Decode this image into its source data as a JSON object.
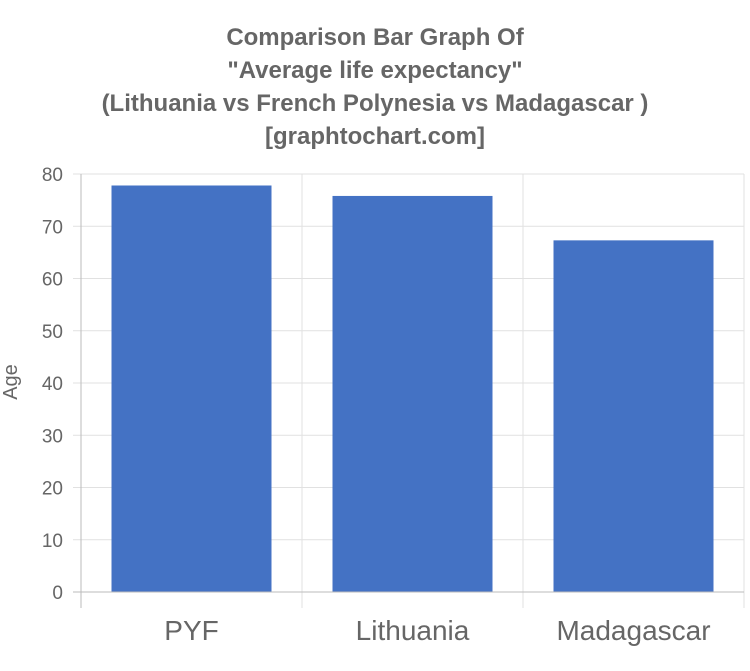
{
  "chart_data": {
    "type": "bar",
    "title": [
      "Comparison Bar Graph Of",
      "\"Average life expectancy\"",
      "(Lithuania vs French Polynesia vs Madagascar )",
      "[graphtochart.com]"
    ],
    "categories": [
      "PYF",
      "Lithuania",
      "Madagascar"
    ],
    "values": [
      77.8,
      75.8,
      67.3
    ],
    "xlabel": "",
    "ylabel": "Age",
    "ylim": [
      0,
      80
    ],
    "yticks": [
      0,
      10,
      20,
      30,
      40,
      50,
      60,
      70,
      80
    ],
    "grid": true,
    "legend": "none",
    "colors": {
      "bar": "#4472c4",
      "text": "#666666",
      "grid": "#e1e1e1"
    }
  }
}
